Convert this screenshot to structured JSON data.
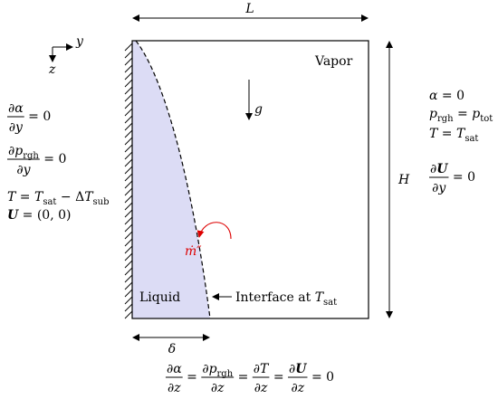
{
  "axes": {
    "y": "y",
    "z": "z"
  },
  "dimensions": {
    "length": "L",
    "height": "H",
    "thickness": "δ"
  },
  "labels": {
    "vapor": "Vapor",
    "liquid": "Liquid",
    "gravity": "g",
    "mass_flux": "ṁ″",
    "interface": [
      {
        "t": "Interface at "
      },
      {
        "it": "T"
      },
      {
        "sub": "sat"
      }
    ]
  },
  "left_conditions": [
    [
      {
        "num": [
          {
            "t": "∂"
          },
          {
            "it": "α"
          }
        ],
        "den": [
          {
            "t": "∂"
          },
          {
            "it": "y"
          }
        ]
      },
      {
        "t": " = 0"
      }
    ],
    [
      {
        "num": [
          {
            "t": "∂"
          },
          {
            "it": "p"
          },
          {
            "sub": "rgh"
          }
        ],
        "den": [
          {
            "t": "∂"
          },
          {
            "it": "y"
          }
        ]
      },
      {
        "t": " = 0"
      }
    ],
    [
      {
        "it": "T"
      },
      {
        "t": " = "
      },
      {
        "it": "T"
      },
      {
        "sub": "sat"
      },
      {
        "t": " − Δ"
      },
      {
        "it": "T"
      },
      {
        "sub": "sub"
      }
    ],
    [
      {
        "bf": "U"
      },
      {
        "t": " = (0, 0)"
      }
    ]
  ],
  "right_conditions": [
    [
      {
        "it": "α"
      },
      {
        "t": " = 0"
      }
    ],
    [
      {
        "it": "p"
      },
      {
        "sub": "rgh"
      },
      {
        "t": " = "
      },
      {
        "it": "p"
      },
      {
        "sub": "tot"
      }
    ],
    [
      {
        "it": "T"
      },
      {
        "t": " = "
      },
      {
        "it": "T"
      },
      {
        "sub": "sat"
      }
    ],
    [
      {
        "num": [
          {
            "t": "∂"
          },
          {
            "bf": "U"
          }
        ],
        "den": [
          {
            "t": "∂"
          },
          {
            "it": "y"
          }
        ]
      },
      {
        "t": " = 0"
      }
    ]
  ],
  "bottom_condition": [
    {
      "num": [
        {
          "t": "∂"
        },
        {
          "it": "α"
        }
      ],
      "den": [
        {
          "t": "∂"
        },
        {
          "it": "z"
        }
      ]
    },
    {
      "t": " = "
    },
    {
      "num": [
        {
          "t": "∂"
        },
        {
          "it": "p"
        },
        {
          "sub": "rgh"
        }
      ],
      "den": [
        {
          "t": "∂"
        },
        {
          "it": "z"
        }
      ]
    },
    {
      "t": " = "
    },
    {
      "num": [
        {
          "t": "∂"
        },
        {
          "it": "T"
        }
      ],
      "den": [
        {
          "t": "∂"
        },
        {
          "it": "z"
        }
      ]
    },
    {
      "t": " = "
    },
    {
      "num": [
        {
          "t": "∂"
        },
        {
          "bf": "U"
        }
      ],
      "den": [
        {
          "t": "∂"
        },
        {
          "it": "z"
        }
      ]
    },
    {
      "t": " = 0"
    }
  ]
}
